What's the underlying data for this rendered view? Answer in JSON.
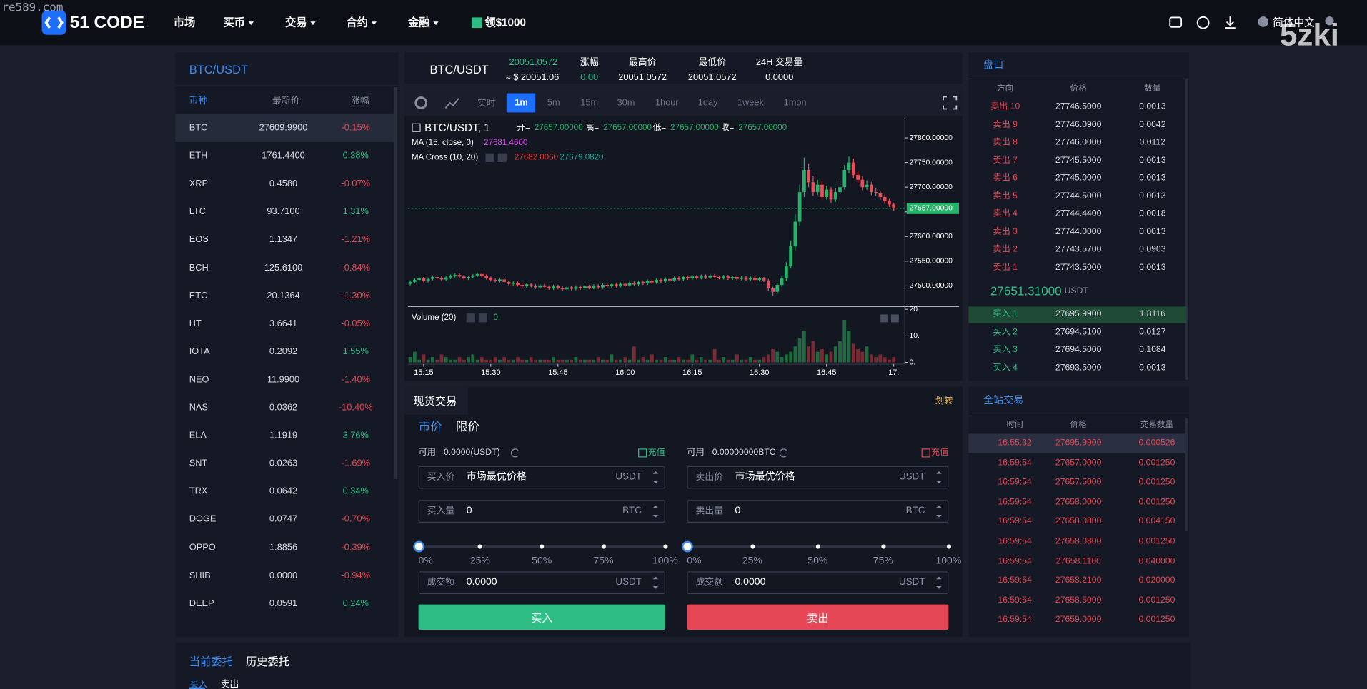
{
  "watermarks": [
    "re589.com",
    "5zki"
  ],
  "header": {
    "logo": "51 CODE",
    "nav": [
      "市场",
      "买币",
      "交易",
      "合约",
      "金融",
      "领$1000"
    ],
    "language": "简体中文"
  },
  "markets": {
    "title": "BTC/USDT",
    "columns": [
      "币种",
      "最新价",
      "涨幅"
    ],
    "rows": [
      [
        "BTC",
        "27609.9900",
        "-0.15%"
      ],
      [
        "ETH",
        "1761.4400",
        "0.38%"
      ],
      [
        "XRP",
        "0.4580",
        "-0.07%"
      ],
      [
        "LTC",
        "93.7100",
        "1.31%"
      ],
      [
        "EOS",
        "1.1347",
        "-1.21%"
      ],
      [
        "BCH",
        "125.6100",
        "-0.84%"
      ],
      [
        "ETC",
        "20.1364",
        "-1.30%"
      ],
      [
        "HT",
        "3.6641",
        "-0.05%"
      ],
      [
        "IOTA",
        "0.2092",
        "1.55%"
      ],
      [
        "NEO",
        "11.9900",
        "-1.40%"
      ],
      [
        "NAS",
        "0.0362",
        "-10.40%"
      ],
      [
        "ELA",
        "1.1919",
        "3.76%"
      ],
      [
        "SNT",
        "0.0263",
        "-1.69%"
      ],
      [
        "TRX",
        "0.0642",
        "0.34%"
      ],
      [
        "DOGE",
        "0.0747",
        "-0.70%"
      ],
      [
        "OPPO",
        "1.8856",
        "-0.39%"
      ],
      [
        "SHIB",
        "0.0000",
        "-0.94%"
      ],
      [
        "DEEP",
        "0.0591",
        "0.24%"
      ]
    ]
  },
  "ticker": {
    "pair": "BTC/USDT",
    "price": "20051.0572",
    "price_usd": "≈ $ 20051.06",
    "stats": [
      {
        "label": "涨幅",
        "value": "0.00"
      },
      {
        "label": "最高价",
        "value": "20051.0572"
      },
      {
        "label": "最低价",
        "value": "20051.0572"
      },
      {
        "label": "24H 交易量",
        "value": "0.0000"
      }
    ]
  },
  "chart_toolbar": {
    "intervals": [
      "实时",
      "1m",
      "5m",
      "15m",
      "30m",
      "1hour",
      "1day",
      "1week",
      "1mon"
    ],
    "active_index": 1
  },
  "chart_data": {
    "type": "candlestick",
    "title": "BTC/USDT, 1",
    "up_color": "#26b36a",
    "down_color": "#e5505c",
    "ohlc_legend": [
      {
        "label": "开=",
        "value": "27657.00000"
      },
      {
        "label": "高=",
        "value": "27657.00000"
      },
      {
        "label": "低=",
        "value": "27657.00000"
      },
      {
        "label": "收=",
        "value": "27657.00000"
      }
    ],
    "indicators": [
      {
        "name": "MA (15, close, 0)",
        "values": [
          "27681.4600"
        ],
        "colors": [
          "#d54ee8"
        ]
      },
      {
        "name": "MA Cross (10, 20)",
        "values": [
          "27682.0060",
          "27679.0820"
        ],
        "colors": [
          "#e53935",
          "#26a69a"
        ]
      }
    ],
    "categories": [
      null,
      null,
      null,
      "15:15",
      null,
      null,
      null,
      null,
      null,
      null,
      null,
      null,
      null,
      null,
      null,
      null,
      null,
      null,
      "15:30",
      null,
      null,
      null,
      null,
      null,
      null,
      null,
      null,
      null,
      null,
      null,
      null,
      null,
      null,
      "15:45",
      null,
      null,
      null,
      null,
      null,
      null,
      null,
      null,
      null,
      null,
      null,
      null,
      null,
      null,
      "16:00",
      null,
      null,
      null,
      null,
      null,
      null,
      null,
      null,
      null,
      null,
      null,
      null,
      null,
      null,
      "16:15",
      null,
      null,
      null,
      null,
      null,
      null,
      null,
      null,
      null,
      null,
      null,
      null,
      null,
      null,
      "16:30",
      null,
      null,
      null,
      null,
      null,
      null,
      null,
      null,
      null,
      null,
      null,
      null,
      null,
      null,
      "16:45",
      null,
      null,
      null,
      null,
      null,
      null,
      null,
      null,
      null,
      null,
      null,
      null,
      null,
      null,
      "17:"
    ],
    "ohlc": [
      [
        27504,
        27511,
        27501,
        27508
      ],
      [
        27508,
        27515,
        27505,
        27512
      ],
      [
        27512,
        27518,
        27509,
        27515
      ],
      [
        27515,
        27518,
        27507,
        27510
      ],
      [
        27510,
        27517,
        27507,
        27514
      ],
      [
        27514,
        27521,
        27511,
        27518
      ],
      [
        27518,
        27521,
        27513,
        27516
      ],
      [
        27516,
        27519,
        27510,
        27513
      ],
      [
        27513,
        27520,
        27510,
        27517
      ],
      [
        27517,
        27523,
        27514,
        27520
      ],
      [
        27520,
        27525,
        27517,
        27522
      ],
      [
        27522,
        27525,
        27516,
        27519
      ],
      [
        27519,
        27522,
        27512,
        27515
      ],
      [
        27515,
        27521,
        27512,
        27518
      ],
      [
        27518,
        27524,
        27515,
        27521
      ],
      [
        27521,
        27527,
        27518,
        27524
      ],
      [
        27524,
        27527,
        27517,
        27520
      ],
      [
        27520,
        27523,
        27513,
        27516
      ],
      [
        27516,
        27519,
        27509,
        27512
      ],
      [
        27512,
        27515,
        27507,
        27510
      ],
      [
        27510,
        27516,
        27507,
        27513
      ],
      [
        27513,
        27516,
        27505,
        27508
      ],
      [
        27508,
        27511,
        27501,
        27504
      ],
      [
        27504,
        27509,
        27501,
        27506
      ],
      [
        27506,
        27509,
        27499,
        27502
      ],
      [
        27502,
        27505,
        27496,
        27499
      ],
      [
        27499,
        27506,
        27496,
        27503
      ],
      [
        27503,
        27506,
        27497,
        27500
      ],
      [
        27500,
        27503,
        27494,
        27497
      ],
      [
        27497,
        27504,
        27494,
        27501
      ],
      [
        27501,
        27504,
        27495,
        27498
      ],
      [
        27498,
        27501,
        27492,
        27495
      ],
      [
        27495,
        27502,
        27492,
        27499
      ],
      [
        27499,
        27502,
        27493,
        27496
      ],
      [
        27496,
        27499,
        27490,
        27493
      ],
      [
        27493,
        27500,
        27490,
        27497
      ],
      [
        27497,
        27500,
        27491,
        27494
      ],
      [
        27494,
        27501,
        27491,
        27498
      ],
      [
        27498,
        27501,
        27492,
        27495
      ],
      [
        27495,
        27502,
        27492,
        27499
      ],
      [
        27499,
        27502,
        27493,
        27496
      ],
      [
        27496,
        27503,
        27493,
        27500
      ],
      [
        27500,
        27503,
        27494,
        27497
      ],
      [
        27497,
        27505,
        27494,
        27502
      ],
      [
        27502,
        27505,
        27496,
        27499
      ],
      [
        27499,
        27506,
        27496,
        27503
      ],
      [
        27503,
        27506,
        27497,
        27500
      ],
      [
        27500,
        27507,
        27497,
        27504
      ],
      [
        27504,
        27507,
        27498,
        27501
      ],
      [
        27501,
        27509,
        27498,
        27506
      ],
      [
        27506,
        27509,
        27500,
        27503
      ],
      [
        27503,
        27511,
        27500,
        27508
      ],
      [
        27508,
        27511,
        27502,
        27505
      ],
      [
        27505,
        27513,
        27502,
        27510
      ],
      [
        27510,
        27513,
        27504,
        27507
      ],
      [
        27507,
        27515,
        27504,
        27512
      ],
      [
        27512,
        27515,
        27506,
        27509
      ],
      [
        27509,
        27517,
        27506,
        27514
      ],
      [
        27514,
        27517,
        27508,
        27511
      ],
      [
        27511,
        27519,
        27508,
        27516
      ],
      [
        27516,
        27519,
        27510,
        27513
      ],
      [
        27513,
        27521,
        27510,
        27518
      ],
      [
        27518,
        27521,
        27512,
        27515
      ],
      [
        27515,
        27522,
        27512,
        27519
      ],
      [
        27519,
        27522,
        27513,
        27516
      ],
      [
        27516,
        27523,
        27513,
        27520
      ],
      [
        27520,
        27523,
        27514,
        27517
      ],
      [
        27517,
        27524,
        27514,
        27521
      ],
      [
        27521,
        27524,
        27515,
        27518
      ],
      [
        27518,
        27521,
        27513,
        27516
      ],
      [
        27516,
        27522,
        27513,
        27519
      ],
      [
        27519,
        27522,
        27512,
        27515
      ],
      [
        27515,
        27521,
        27512,
        27518
      ],
      [
        27518,
        27521,
        27511,
        27514
      ],
      [
        27514,
        27520,
        27511,
        27517
      ],
      [
        27517,
        27520,
        27510,
        27513
      ],
      [
        27513,
        27519,
        27510,
        27516
      ],
      [
        27516,
        27519,
        27509,
        27512
      ],
      [
        27512,
        27518,
        27509,
        27515
      ],
      [
        27515,
        27518,
        27508,
        27511
      ],
      [
        27511,
        27514,
        27490,
        27495
      ],
      [
        27495,
        27498,
        27480,
        27488
      ],
      [
        27488,
        27505,
        27484,
        27502
      ],
      [
        27502,
        27520,
        27498,
        27515
      ],
      [
        27515,
        27548,
        27510,
        27540
      ],
      [
        27540,
        27592,
        27535,
        27580
      ],
      [
        27580,
        27645,
        27572,
        27630
      ],
      [
        27630,
        27705,
        27622,
        27690
      ],
      [
        27690,
        27760,
        27680,
        27735
      ],
      [
        27735,
        27748,
        27700,
        27710
      ],
      [
        27710,
        27722,
        27682,
        27690
      ],
      [
        27690,
        27715,
        27684,
        27705
      ],
      [
        27705,
        27712,
        27674,
        27680
      ],
      [
        27680,
        27703,
        27675,
        27695
      ],
      [
        27695,
        27700,
        27668,
        27675
      ],
      [
        27675,
        27698,
        27670,
        27690
      ],
      [
        27690,
        27712,
        27685,
        27700
      ],
      [
        27700,
        27745,
        27695,
        27735
      ],
      [
        27735,
        27762,
        27728,
        27750
      ],
      [
        27750,
        27758,
        27718,
        27725
      ],
      [
        27725,
        27732,
        27708,
        27715
      ],
      [
        27715,
        27722,
        27694,
        27700
      ],
      [
        27700,
        27714,
        27695,
        27705
      ],
      [
        27705,
        27710,
        27684,
        27690
      ],
      [
        27690,
        27698,
        27682,
        27688
      ],
      [
        27688,
        27692,
        27674,
        27680
      ],
      [
        27680,
        27685,
        27666,
        27672
      ],
      [
        27672,
        27676,
        27660,
        27665
      ],
      [
        27665,
        27668,
        27652,
        27657
      ]
    ],
    "ylim": [
      27458,
      27841
    ],
    "yticks": [
      {
        "value": 27500,
        "label": "27500.00000"
      },
      {
        "value": 27550,
        "label": "27550.00000"
      },
      {
        "value": 27600,
        "label": "27600.00000"
      },
      {
        "value": 27650,
        "label": "27650.00000"
      },
      {
        "value": 27700,
        "label": "27700.00000"
      },
      {
        "value": 27750,
        "label": "27750.00000"
      },
      {
        "value": 27800,
        "label": "27800.00000"
      }
    ],
    "last_price": {
      "value": 27657,
      "label": "27657.00000"
    },
    "volume": {
      "name": "Volume (20)",
      "value_label": "0.",
      "ylim": [
        0,
        21
      ],
      "yticks": [
        {
          "value": 0,
          "label": "0."
        },
        {
          "value": 10,
          "label": "10."
        },
        {
          "value": 20,
          "label": "20."
        }
      ],
      "values": [
        2,
        4,
        1,
        3,
        1,
        2,
        1,
        3,
        2,
        1,
        1,
        2,
        1,
        2,
        3,
        1,
        2,
        1,
        1,
        2,
        1,
        2,
        1,
        1,
        2,
        1,
        1,
        2,
        1,
        1,
        1,
        1,
        2,
        1,
        1,
        1,
        1,
        2,
        1,
        1,
        1,
        1,
        2,
        1,
        1,
        3,
        1,
        1,
        2,
        1,
        6,
        1,
        2,
        1,
        3,
        1,
        1,
        2,
        1,
        1,
        2,
        1,
        1,
        3,
        1,
        2,
        1,
        1,
        5,
        1,
        2,
        1,
        1,
        3,
        1,
        1,
        2,
        1,
        1,
        2,
        3,
        5,
        4,
        2,
        3,
        4,
        6,
        9,
        12,
        6,
        8,
        4,
        5,
        3,
        4,
        6,
        8,
        16,
        12,
        7,
        5,
        4,
        6,
        3,
        2,
        3,
        2,
        1,
        2
      ]
    }
  },
  "orderbook": {
    "title": "盘口",
    "columns": [
      "方向",
      "价格",
      "数量"
    ],
    "asks": [
      [
        "卖出 10",
        "27746.5000",
        "0.0013"
      ],
      [
        "卖出 9",
        "27746.0900",
        "0.0042"
      ],
      [
        "卖出 8",
        "27746.0000",
        "0.0112"
      ],
      [
        "卖出 7",
        "27745.5000",
        "0.0013"
      ],
      [
        "卖出 6",
        "27745.0000",
        "0.0013"
      ],
      [
        "卖出 5",
        "27744.5000",
        "0.0013"
      ],
      [
        "卖出 4",
        "27744.4400",
        "0.0018"
      ],
      [
        "卖出 3",
        "27744.0000",
        "0.0013"
      ],
      [
        "卖出 2",
        "27743.5700",
        "0.0903"
      ],
      [
        "卖出 1",
        "27743.5000",
        "0.0013"
      ]
    ],
    "mid_price": "27651.31000",
    "mid_unit": "USDT",
    "bids": [
      [
        "买入 1",
        "27695.9900",
        "1.8116"
      ],
      [
        "买入 2",
        "27694.5100",
        "0.0127"
      ],
      [
        "买入 3",
        "27694.5000",
        "0.1084"
      ],
      [
        "买入 4",
        "27693.5000",
        "0.0013"
      ]
    ]
  },
  "trades": {
    "title": "全站交易",
    "columns": [
      "时间",
      "价格",
      "交易数量"
    ],
    "rows": [
      [
        "16:55:32",
        "27695.9900",
        "0.000526"
      ],
      [
        "16:59:54",
        "27657.0000",
        "0.001250"
      ],
      [
        "16:59:54",
        "27657.5000",
        "0.001250"
      ],
      [
        "16:59:54",
        "27658.0000",
        "0.001250"
      ],
      [
        "16:59:54",
        "27658.0800",
        "0.004150"
      ],
      [
        "16:59:54",
        "27658.0800",
        "0.001250"
      ],
      [
        "16:59:54",
        "27658.1100",
        "0.040000"
      ],
      [
        "16:59:54",
        "27658.2100",
        "0.020000"
      ],
      [
        "16:59:54",
        "27658.5000",
        "0.001250"
      ],
      [
        "16:59:54",
        "27659.0000",
        "0.001250"
      ]
    ]
  },
  "trade_form": {
    "title": "现货交易",
    "transfer": "划转",
    "tabs": [
      "市价",
      "限价"
    ],
    "buy": {
      "available_label": "可用",
      "available": "0.0000(USDT)",
      "deposit": "充值",
      "price_label": "买入价",
      "price": "市场最优价格",
      "price_unit": "USDT",
      "amount_label": "买入量",
      "amount": "0",
      "amount_unit": "BTC",
      "percents": [
        "0%",
        "25%",
        "50%",
        "75%",
        "100%"
      ],
      "total_label": "成交额",
      "total": "0.0000",
      "total_unit": "USDT",
      "submit": "买入"
    },
    "sell": {
      "available_label": "可用",
      "available": "0.00000000BTC",
      "deposit": "充值",
      "price_label": "卖出价",
      "price": "市场最优价格",
      "price_unit": "USDT",
      "amount_label": "卖出量",
      "amount": "0",
      "amount_unit": "BTC",
      "percents": [
        "0%",
        "25%",
        "50%",
        "75%",
        "100%"
      ],
      "total_label": "成交额",
      "total": "0.0000",
      "total_unit": "USDT",
      "submit": "卖出"
    }
  },
  "orders": {
    "tabs": [
      "当前委托",
      "历史委托"
    ],
    "subtabs": [
      "买入",
      "卖出"
    ]
  }
}
